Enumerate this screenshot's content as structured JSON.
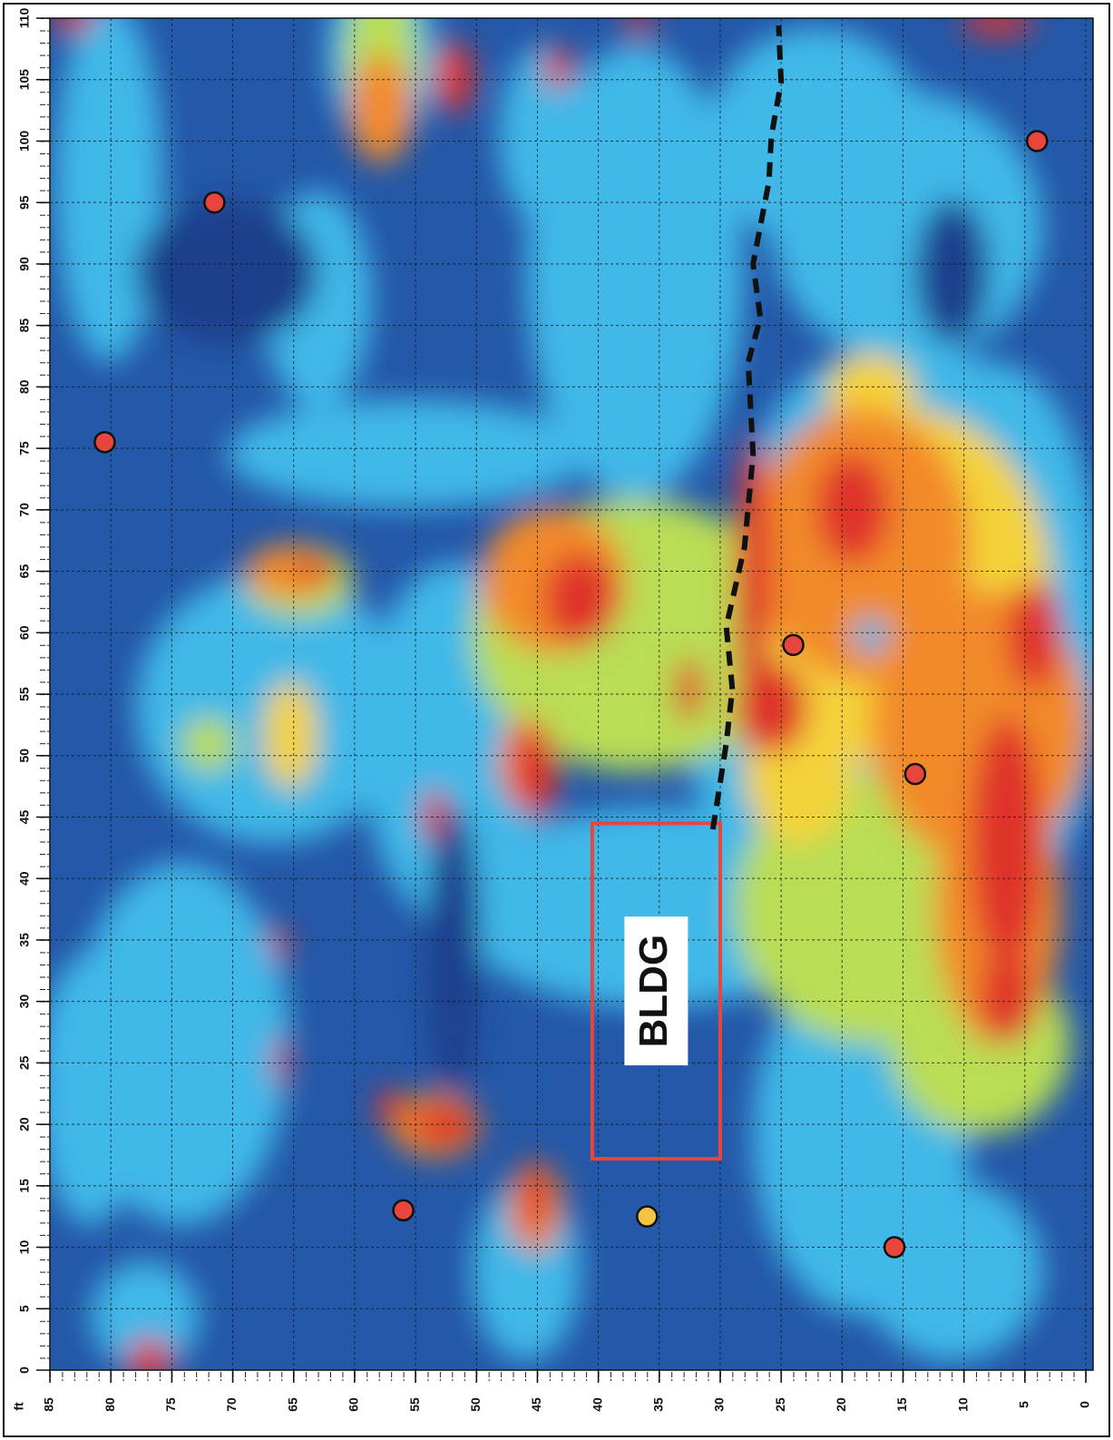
{
  "chart_data": {
    "type": "scatter",
    "axis_label": "ft",
    "xlim": [
      85,
      0
    ],
    "ylim": [
      0,
      110
    ],
    "xticks": [
      0,
      5,
      10,
      15,
      20,
      25,
      30,
      35,
      40,
      45,
      50,
      55,
      60,
      65,
      70,
      75,
      80,
      85
    ],
    "yticks": [
      0,
      5,
      10,
      15,
      20,
      25,
      30,
      35,
      40,
      45,
      50,
      55,
      60,
      65,
      70,
      75,
      80,
      85,
      90,
      95,
      100,
      105,
      110
    ],
    "grid": true,
    "series": [
      {
        "color": "#e8463c",
        "x": [
          71.5,
          80.5,
          4,
          24,
          14,
          56,
          15.7
        ],
        "y": [
          95,
          75.5,
          100,
          59,
          48.5,
          13,
          10
        ]
      },
      {
        "color": "#f5c342",
        "x": [
          36
        ],
        "y": [
          12.5
        ]
      }
    ],
    "boundary": {
      "color": "#111111",
      "x": [
        30.6,
        29.5,
        29,
        29.5,
        28,
        27.3,
        27.7,
        26.7,
        27.3,
        26,
        25.8,
        25,
        25.2
      ],
      "y": [
        44,
        51,
        55.4,
        60.5,
        67,
        74.5,
        82,
        85.6,
        90,
        96.7,
        100.4,
        104.8,
        109.4
      ]
    },
    "building": {
      "label": "BLDG",
      "color": "#e8463c",
      "x": [
        40.5,
        30
      ],
      "y": [
        17.2,
        44.5
      ]
    }
  }
}
